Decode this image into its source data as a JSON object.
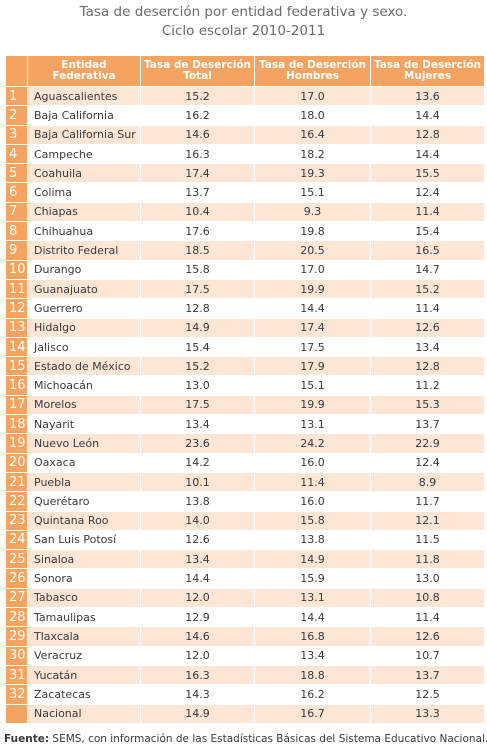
{
  "title": {
    "line1": "Tasa de deserción por entidad federativa y sexo.",
    "line2": "Ciclo escolar 2010-2011"
  },
  "table": {
    "header": [
      [
        "Entidad",
        "Federativa"
      ],
      [
        "Tasa de Deserción",
        "Total"
      ],
      [
        "Tasa de Deserción",
        "Hombres"
      ],
      [
        "Tasa de Deserción",
        "Mujeres"
      ]
    ],
    "rows": [
      [
        "1",
        "Aguascalientes",
        "15.2",
        "17.0",
        "13.6"
      ],
      [
        "2",
        "Baja California",
        "16.2",
        "18.0",
        "14.4"
      ],
      [
        "3",
        "Baja California Sur",
        "14.6",
        "16.4",
        "12.8"
      ],
      [
        "4",
        "Campeche",
        "16.3",
        "18.2",
        "14.4"
      ],
      [
        "5",
        "Coahuila",
        "17.4",
        "19.3",
        "15.5"
      ],
      [
        "6",
        "Colima",
        "13.7",
        "15.1",
        "12.4"
      ],
      [
        "7",
        "Chiapas",
        "10.4",
        "9.3",
        "11.4"
      ],
      [
        "8",
        "Chihuahua",
        "17.6",
        "19.8",
        "15.4"
      ],
      [
        "9",
        "Distrito Federal",
        "18.5",
        "20.5",
        "16.5"
      ],
      [
        "10",
        "Durango",
        "15.8",
        "17.0",
        "14.7"
      ],
      [
        "11",
        "Guanajuato",
        "17.5",
        "19.9",
        "15.2"
      ],
      [
        "12",
        "Guerrero",
        "12.8",
        "14.4",
        "11.4"
      ],
      [
        "13",
        "Hidalgo",
        "14.9",
        "17.4",
        "12.6"
      ],
      [
        "14",
        "Jalisco",
        "15.4",
        "17.5",
        "13.4"
      ],
      [
        "15",
        "Estado de México",
        "15.2",
        "17.9",
        "12.8"
      ],
      [
        "16",
        "Michoacán",
        "13.0",
        "15.1",
        "11.2"
      ],
      [
        "17",
        "Morelos",
        "17.5",
        "19.9",
        "15.3"
      ],
      [
        "18",
        "Nayarit",
        "13.4",
        "13.1",
        "13.7"
      ],
      [
        "19",
        "Nuevo León",
        "23.6",
        "24.2",
        "22.9"
      ],
      [
        "20",
        "Oaxaca",
        "14.2",
        "16.0",
        "12.4"
      ],
      [
        "21",
        "Puebla",
        "10.1",
        "11.4",
        "8.9"
      ],
      [
        "22",
        "Querétaro",
        "13.8",
        "16.0",
        "11.7"
      ],
      [
        "23",
        "Quintana Roo",
        "14.0",
        "15.8",
        "12.1"
      ],
      [
        "24",
        "San Luis Potosí",
        "12.6",
        "13.8",
        "11.5"
      ],
      [
        "25",
        "Sinaloa",
        "13.4",
        "14.9",
        "11.8"
      ],
      [
        "26",
        "Sonora",
        "14.4",
        "15.9",
        "13.0"
      ],
      [
        "27",
        "Tabasco",
        "12.0",
        "13.1",
        "10.8"
      ],
      [
        "28",
        "Tamaulipas",
        "12.9",
        "14.4",
        "11.4"
      ],
      [
        "29",
        "Tlaxcala",
        "14.6",
        "16.8",
        "12.6"
      ],
      [
        "30",
        "Veracruz",
        "12.0",
        "13.4",
        "10.7"
      ],
      [
        "31",
        "Yucatán",
        "16.3",
        "18.8",
        "13.7"
      ],
      [
        "32",
        "Zacatecas",
        "14.3",
        "16.2",
        "12.5"
      ],
      [
        null,
        "Nacional",
        "14.9",
        "16.7",
        "13.3"
      ]
    ]
  },
  "footer": {
    "label": "Fuente:",
    "text": "SEMS, con información de las Estadísticas Básicas del Sistema Educativo Nacional."
  }
}
